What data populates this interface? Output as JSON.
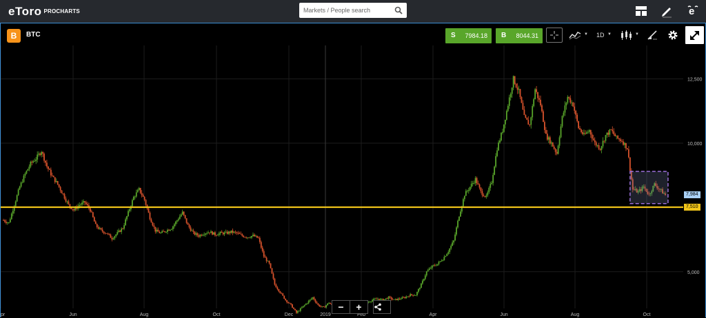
{
  "header": {
    "logo_text": "eToro",
    "logo_sub": "PROCHARTS",
    "search_placeholder": "Markets / People search",
    "icons": [
      "layout-icon",
      "pencil-icon",
      "etoro-e-icon"
    ]
  },
  "instrument": {
    "coin_glyph": "B",
    "symbol": "BTC",
    "sell_label": "S",
    "sell_price": "7984.18",
    "buy_label": "B",
    "buy_price": "8044.31"
  },
  "toolbar": {
    "interval": "1D",
    "icons": [
      "crosshair-icon",
      "indicators-icon",
      "candlestick-icon",
      "drawing-icon",
      "gear-icon",
      "fullscreen-icon"
    ]
  },
  "colors": {
    "up": "#59a62a",
    "down": "#d9532c",
    "price_line": "#f0c419",
    "selection": "#9b6fd9",
    "last_price": "#a9d0f5"
  },
  "chart_data": {
    "type": "candlestick",
    "symbol": "BTC",
    "y_ticks": [
      "12,500",
      "10,000",
      "5,000"
    ],
    "x_ticks": [
      "pr",
      "Jun",
      "Aug",
      "Oct",
      "Dec",
      "2019",
      "Feb",
      "Apr",
      "Jun",
      "Aug",
      "Oct"
    ],
    "ylim": [
      3200,
      13800
    ],
    "last_price_label": "7,984",
    "horizontal_line_label": "7,510",
    "horizontal_line_value": 7510,
    "close_path": [
      [
        0,
        7000
      ],
      [
        4,
        6900
      ],
      [
        8,
        7600
      ],
      [
        12,
        8300
      ],
      [
        16,
        8800
      ],
      [
        20,
        9200
      ],
      [
        24,
        9400
      ],
      [
        28,
        9700
      ],
      [
        32,
        9100
      ],
      [
        36,
        8700
      ],
      [
        40,
        8400
      ],
      [
        44,
        8000
      ],
      [
        48,
        7600
      ],
      [
        52,
        7400
      ],
      [
        56,
        7600
      ],
      [
        60,
        7700
      ],
      [
        64,
        7400
      ],
      [
        68,
        6800
      ],
      [
        72,
        6600
      ],
      [
        76,
        6500
      ],
      [
        80,
        6300
      ],
      [
        84,
        6500
      ],
      [
        88,
        6700
      ],
      [
        92,
        7300
      ],
      [
        96,
        7900
      ],
      [
        100,
        8200
      ],
      [
        104,
        7800
      ],
      [
        108,
        7100
      ],
      [
        112,
        6600
      ],
      [
        116,
        6500
      ],
      [
        120,
        6600
      ],
      [
        124,
        6700
      ],
      [
        128,
        7000
      ],
      [
        132,
        7300
      ],
      [
        136,
        6800
      ],
      [
        140,
        6500
      ],
      [
        144,
        6400
      ],
      [
        148,
        6500
      ],
      [
        152,
        6550
      ],
      [
        156,
        6450
      ],
      [
        160,
        6500
      ],
      [
        164,
        6500
      ],
      [
        168,
        6550
      ],
      [
        172,
        6500
      ],
      [
        176,
        6400
      ],
      [
        180,
        6350
      ],
      [
        184,
        6400
      ],
      [
        188,
        6300
      ],
      [
        192,
        5600
      ],
      [
        196,
        5300
      ],
      [
        200,
        4500
      ],
      [
        204,
        4200
      ],
      [
        208,
        3900
      ],
      [
        212,
        3700
      ],
      [
        216,
        3400
      ],
      [
        220,
        3600
      ],
      [
        224,
        3800
      ],
      [
        228,
        4000
      ],
      [
        232,
        3700
      ],
      [
        236,
        3600
      ],
      [
        240,
        3800
      ],
      [
        244,
        3600
      ],
      [
        248,
        3550
      ],
      [
        252,
        3500
      ],
      [
        256,
        3450
      ],
      [
        260,
        3400
      ],
      [
        264,
        3600
      ],
      [
        268,
        3800
      ],
      [
        272,
        3900
      ],
      [
        276,
        3950
      ],
      [
        280,
        3900
      ],
      [
        284,
        4000
      ],
      [
        288,
        3900
      ],
      [
        292,
        3950
      ],
      [
        296,
        4000
      ],
      [
        300,
        4100
      ],
      [
        304,
        4100
      ],
      [
        308,
        4500
      ],
      [
        312,
        5000
      ],
      [
        316,
        5200
      ],
      [
        320,
        5300
      ],
      [
        324,
        5500
      ],
      [
        328,
        5800
      ],
      [
        332,
        6200
      ],
      [
        336,
        7200
      ],
      [
        340,
        8000
      ],
      [
        344,
        8300
      ],
      [
        348,
        8600
      ],
      [
        352,
        8100
      ],
      [
        356,
        7900
      ],
      [
        360,
        8500
      ],
      [
        364,
        9800
      ],
      [
        368,
        10500
      ],
      [
        372,
        11500
      ],
      [
        376,
        12500
      ],
      [
        380,
        12000
      ],
      [
        384,
        11000
      ],
      [
        388,
        10700
      ],
      [
        392,
        12100
      ],
      [
        396,
        11500
      ],
      [
        400,
        10300
      ],
      [
        404,
        10000
      ],
      [
        408,
        9600
      ],
      [
        412,
        11000
      ],
      [
        416,
        11800
      ],
      [
        420,
        11500
      ],
      [
        424,
        10600
      ],
      [
        428,
        10300
      ],
      [
        432,
        10500
      ],
      [
        436,
        10000
      ],
      [
        440,
        9800
      ],
      [
        444,
        10300
      ],
      [
        448,
        10500
      ],
      [
        452,
        10200
      ],
      [
        456,
        10100
      ],
      [
        460,
        9800
      ],
      [
        464,
        8200
      ],
      [
        468,
        8100
      ],
      [
        472,
        8300
      ],
      [
        476,
        8000
      ],
      [
        480,
        8400
      ],
      [
        484,
        8200
      ],
      [
        488,
        7984
      ]
    ]
  }
}
